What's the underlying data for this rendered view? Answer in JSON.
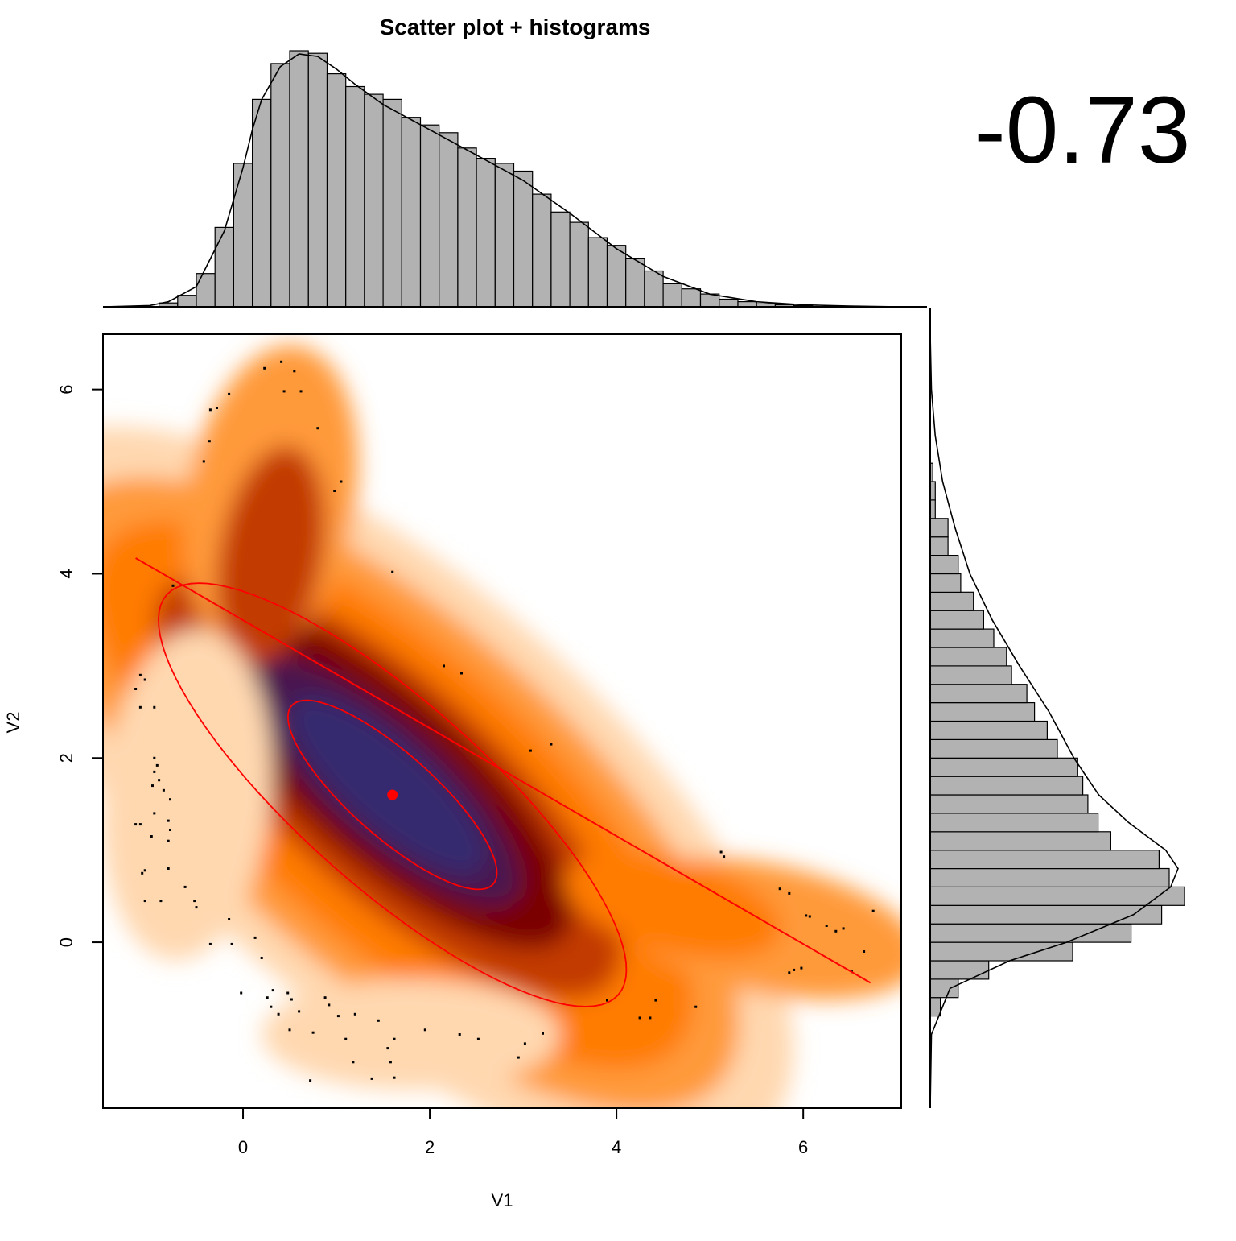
{
  "title": "Scatter plot + histograms",
  "correlation_label": "-0.73",
  "chart_data": [
    {
      "type": "scatter",
      "role": "main-density-scatter",
      "xlabel": "V1",
      "ylabel": "V2",
      "xlim": [
        -1.5,
        7.05
      ],
      "ylim": [
        -1.8,
        6.6
      ],
      "xticks": [
        0,
        2,
        4,
        6
      ],
      "yticks": [
        0,
        2,
        4,
        6
      ],
      "density_colors": [
        "#ffffff",
        "#ffd8b0",
        "#ff9a3a",
        "#ff7c00",
        "#c23a00",
        "#7a0000",
        "#4a1250",
        "#352a70"
      ],
      "mean_point": {
        "x": 1.6,
        "y": 1.6
      },
      "regression_line": {
        "x": [
          -1.15,
          6.72
        ],
        "y": [
          4.17,
          -0.44
        ]
      },
      "ellipse_color": "#ff0000",
      "ellipses": [
        {
          "level": "inner",
          "center": [
            1.6,
            1.6
          ],
          "angle_deg": -42,
          "a": 1.45,
          "b": 0.45
        },
        {
          "level": "outer",
          "center": [
            1.6,
            1.6
          ],
          "angle_deg": -42,
          "a": 3.25,
          "b": 1.0
        }
      ],
      "points": [
        [
          0.23,
          6.23
        ],
        [
          0.41,
          6.3
        ],
        [
          0.55,
          6.2
        ],
        [
          0.44,
          5.98
        ],
        [
          0.62,
          5.98
        ],
        [
          -0.15,
          5.95
        ],
        [
          -0.35,
          5.78
        ],
        [
          -0.28,
          5.8
        ],
        [
          0.8,
          5.58
        ],
        [
          -0.36,
          5.44
        ],
        [
          -0.42,
          5.22
        ],
        [
          1.05,
          5.0
        ],
        [
          0.98,
          4.9
        ],
        [
          1.6,
          4.02
        ],
        [
          -0.75,
          3.87
        ],
        [
          2.15,
          3.0
        ],
        [
          2.34,
          2.92
        ],
        [
          3.3,
          2.15
        ],
        [
          3.08,
          2.08
        ],
        [
          -1.1,
          2.9
        ],
        [
          -1.05,
          2.85
        ],
        [
          -1.15,
          2.75
        ],
        [
          -1.1,
          2.55
        ],
        [
          -0.95,
          2.55
        ],
        [
          -0.95,
          2.0
        ],
        [
          -0.92,
          1.92
        ],
        [
          -0.95,
          1.85
        ],
        [
          -0.9,
          1.76
        ],
        [
          -0.97,
          1.7
        ],
        [
          -0.85,
          1.65
        ],
        [
          -0.78,
          1.55
        ],
        [
          -0.95,
          1.4
        ],
        [
          -0.8,
          1.32
        ],
        [
          -1.15,
          1.28
        ],
        [
          -1.1,
          1.28
        ],
        [
          -0.78,
          1.22
        ],
        [
          -0.98,
          1.15
        ],
        [
          -0.8,
          1.1
        ],
        [
          -1.05,
          0.78
        ],
        [
          -1.08,
          0.75
        ],
        [
          -0.8,
          0.8
        ],
        [
          -0.62,
          0.6
        ],
        [
          -0.52,
          0.45
        ],
        [
          -0.5,
          0.38
        ],
        [
          -1.05,
          0.45
        ],
        [
          -0.88,
          0.45
        ],
        [
          -0.15,
          0.25
        ],
        [
          0.13,
          0.05
        ],
        [
          -0.35,
          -0.02
        ],
        [
          -0.12,
          -0.02
        ],
        [
          0.2,
          -0.17
        ],
        [
          -0.02,
          -0.55
        ],
        [
          0.26,
          -0.6
        ],
        [
          0.3,
          -0.7
        ],
        [
          0.32,
          -0.52
        ],
        [
          0.48,
          -0.55
        ],
        [
          0.52,
          -0.62
        ],
        [
          0.6,
          -0.75
        ],
        [
          0.38,
          -0.78
        ],
        [
          0.5,
          -0.95
        ],
        [
          0.88,
          -0.6
        ],
        [
          0.92,
          -0.68
        ],
        [
          1.02,
          -0.8
        ],
        [
          0.75,
          -0.98
        ],
        [
          1.2,
          -0.78
        ],
        [
          1.45,
          -0.85
        ],
        [
          1.1,
          -1.05
        ],
        [
          1.62,
          -1.05
        ],
        [
          1.55,
          -1.15
        ],
        [
          1.18,
          -1.3
        ],
        [
          1.58,
          -1.3
        ],
        [
          1.62,
          -1.47
        ],
        [
          1.38,
          -1.48
        ],
        [
          1.95,
          -0.95
        ],
        [
          2.32,
          -1.0
        ],
        [
          2.52,
          -1.05
        ],
        [
          3.02,
          -1.1
        ],
        [
          3.21,
          -0.99
        ],
        [
          2.95,
          -1.25
        ],
        [
          3.9,
          -0.63
        ],
        [
          4.25,
          -0.82
        ],
        [
          4.36,
          -0.82
        ],
        [
          4.42,
          -0.63
        ],
        [
          4.85,
          -0.7
        ],
        [
          5.12,
          0.98
        ],
        [
          5.15,
          0.93
        ],
        [
          5.75,
          0.58
        ],
        [
          5.85,
          0.53
        ],
        [
          6.03,
          0.29
        ],
        [
          6.07,
          0.28
        ],
        [
          6.25,
          0.18
        ],
        [
          6.35,
          0.12
        ],
        [
          6.43,
          0.15
        ],
        [
          6.75,
          0.34
        ],
        [
          6.65,
          -0.1
        ],
        [
          5.85,
          -0.33
        ],
        [
          5.9,
          -0.3
        ],
        [
          5.98,
          -0.28
        ],
        [
          6.52,
          -0.32
        ],
        [
          0.72,
          -1.5
        ]
      ]
    },
    {
      "type": "bar",
      "role": "top-histogram-V1",
      "x_start": -0.9,
      "bin_width": 0.2,
      "values": [
        0.015,
        0.045,
        0.13,
        0.31,
        0.56,
        0.81,
        0.95,
        1.0,
        0.99,
        0.91,
        0.86,
        0.83,
        0.81,
        0.74,
        0.71,
        0.68,
        0.62,
        0.58,
        0.56,
        0.53,
        0.44,
        0.37,
        0.33,
        0.27,
        0.24,
        0.19,
        0.14,
        0.09,
        0.07,
        0.05,
        0.03,
        0.02,
        0.012,
        0.008,
        0.005
      ],
      "density_curve_x": [
        -1.5,
        -1.0,
        -0.8,
        -0.5,
        -0.2,
        0.0,
        0.1,
        0.2,
        0.4,
        0.6,
        0.8,
        1.0,
        1.2,
        1.5,
        2.0,
        2.5,
        3.0,
        3.5,
        4.0,
        4.5,
        5.0,
        5.5,
        6.0,
        6.5,
        7.05
      ],
      "density_curve_y": [
        0.0,
        0.005,
        0.02,
        0.08,
        0.3,
        0.55,
        0.7,
        0.82,
        0.95,
        1.0,
        0.99,
        0.94,
        0.88,
        0.8,
        0.7,
        0.6,
        0.5,
        0.37,
        0.23,
        0.12,
        0.05,
        0.02,
        0.008,
        0.003,
        0.0
      ]
    },
    {
      "type": "bar",
      "role": "right-histogram-V2",
      "orientation": "horizontal",
      "y_start": -0.8,
      "bin_width": 0.2,
      "values": [
        0.04,
        0.11,
        0.23,
        0.56,
        0.79,
        0.91,
        1.0,
        0.94,
        0.9,
        0.71,
        0.66,
        0.62,
        0.6,
        0.58,
        0.5,
        0.46,
        0.41,
        0.38,
        0.32,
        0.3,
        0.25,
        0.21,
        0.17,
        0.12,
        0.11,
        0.07,
        0.07,
        0.02,
        0.02,
        0.01
      ],
      "density_curve_y": [
        -1.8,
        -1.0,
        -0.5,
        -0.2,
        0.0,
        0.3,
        0.6,
        0.8,
        1.0,
        1.3,
        1.6,
        2.0,
        2.5,
        3.0,
        3.5,
        4.0,
        4.5,
        5.0,
        5.5,
        6.0,
        6.6
      ],
      "density_curve_x": [
        0.0,
        0.005,
        0.08,
        0.32,
        0.55,
        0.82,
        0.97,
        1.0,
        0.95,
        0.8,
        0.68,
        0.58,
        0.48,
        0.36,
        0.25,
        0.16,
        0.1,
        0.05,
        0.02,
        0.005,
        0.0
      ]
    }
  ]
}
